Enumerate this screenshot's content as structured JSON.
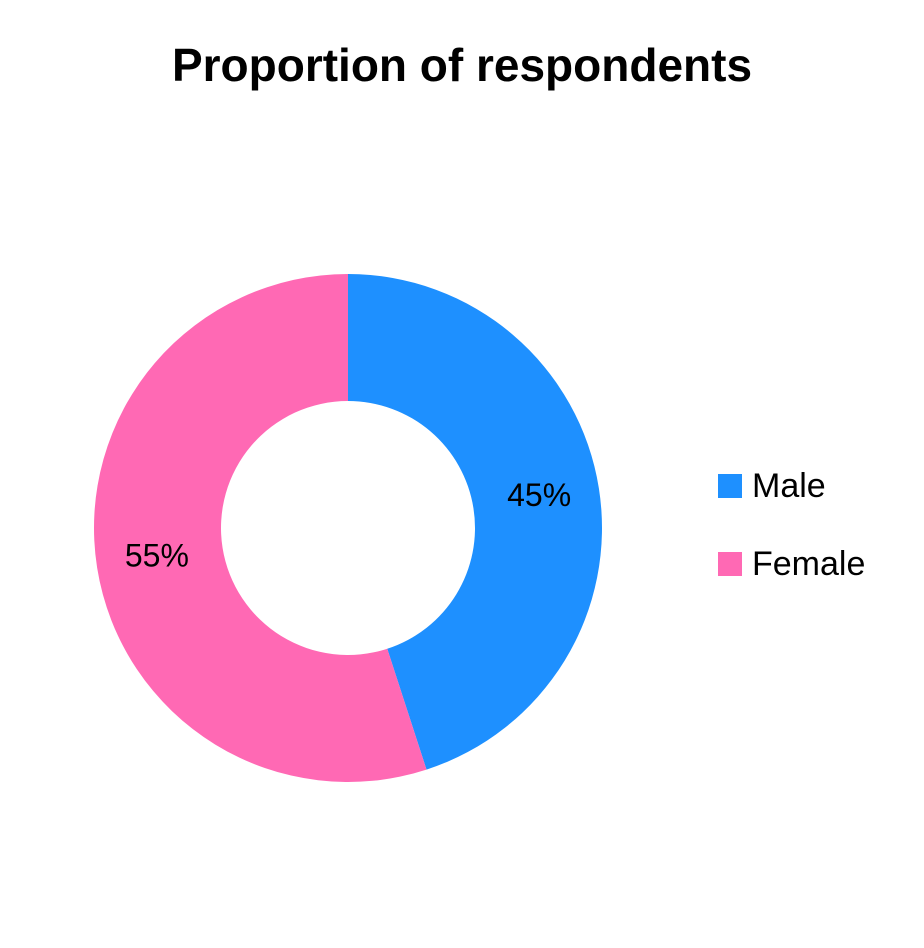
{
  "chart_data": {
    "type": "pie",
    "title": "Proportion of respondents",
    "donut": true,
    "start_angle_deg": 0,
    "direction": "clockwise",
    "categories": [
      "Male",
      "Female"
    ],
    "values": [
      45,
      55
    ],
    "labels": [
      "45%",
      "55%"
    ],
    "colors": [
      "#1E90FF",
      "#FF69B4"
    ],
    "legend_position": "right"
  }
}
